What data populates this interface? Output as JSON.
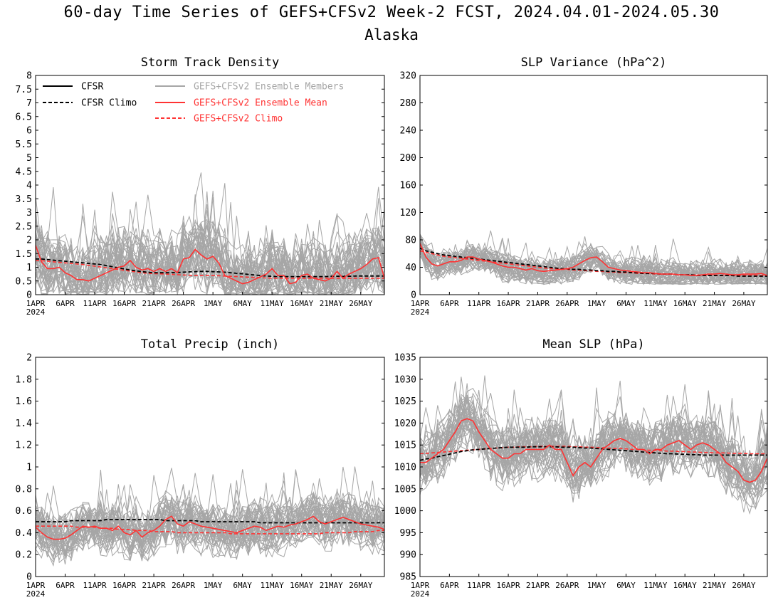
{
  "title": "60-day Time Series of GEFS+CFSv2 Week-2 FCST, 2024.04.01-2024.05.30",
  "subtitle": "Alaska",
  "colors": {
    "cfsr": "#000000",
    "ensemble_members": "#a6a6a6",
    "ensemble_mean": "#ff3333",
    "gefs_climo": "#ff3333"
  },
  "legend": {
    "cfsr": "CFSR",
    "cfsr_climo": "CFSR Climo",
    "members": "GEFS+CFSv2 Ensemble Members",
    "mean": "GEFS+CFSv2 Ensemble Mean",
    "gefs_climo": "GEFS+CFSv2 Climo"
  },
  "x_ticks": [
    "1APR",
    "6APR",
    "11APR",
    "16APR",
    "21APR",
    "26APR",
    "1MAY",
    "6MAY",
    "11MAY",
    "16MAY",
    "21MAY",
    "26MAY"
  ],
  "x_year": "2024",
  "chart_data": [
    {
      "type": "line",
      "title": "Storm Track Density",
      "x": "days 1APR-30MAY 2024",
      "ylim": [
        0,
        8
      ],
      "yticks": [
        "0",
        "0.5",
        "1",
        "1.5",
        "2",
        "2.5",
        "3",
        "3.5",
        "4",
        "4.5",
        "5",
        "5.5",
        "6",
        "6.5",
        "7",
        "7.5",
        "8"
      ],
      "ensemble_mean": [
        1.8,
        1.2,
        0.95,
        0.95,
        1.0,
        0.8,
        0.7,
        0.55,
        0.55,
        0.5,
        0.6,
        0.7,
        0.8,
        0.9,
        1.0,
        1.05,
        1.25,
        1.0,
        0.9,
        0.95,
        0.85,
        0.95,
        0.85,
        0.95,
        0.8,
        1.3,
        1.35,
        1.65,
        1.45,
        1.3,
        1.4,
        1.15,
        0.7,
        0.6,
        0.5,
        0.4,
        0.45,
        0.55,
        0.65,
        0.75,
        0.95,
        0.7,
        0.7,
        0.4,
        0.45,
        0.7,
        0.75,
        0.6,
        0.55,
        0.5,
        0.6,
        0.85,
        0.6,
        0.75,
        0.85,
        0.95,
        1.1,
        1.3,
        1.35,
        0.6
      ],
      "cfsr_climo": [
        1.3,
        1.3,
        1.28,
        1.26,
        1.24,
        1.22,
        1.2,
        1.18,
        1.16,
        1.14,
        1.12,
        1.1,
        1.06,
        1.02,
        0.98,
        0.94,
        0.9,
        0.87,
        0.84,
        0.82,
        0.8,
        0.8,
        0.8,
        0.8,
        0.81,
        0.82,
        0.83,
        0.84,
        0.85,
        0.85,
        0.84,
        0.83,
        0.82,
        0.8,
        0.78,
        0.76,
        0.74,
        0.72,
        0.7,
        0.68,
        0.67,
        0.66,
        0.66,
        0.66,
        0.66,
        0.66,
        0.66,
        0.66,
        0.66,
        0.66,
        0.67,
        0.67,
        0.67,
        0.67,
        0.68,
        0.68,
        0.68,
        0.68,
        0.68,
        0.68
      ],
      "gefs_climo": [
        1.25,
        1.24,
        1.22,
        1.2,
        1.18,
        1.16,
        1.14,
        1.12,
        1.1,
        1.07,
        1.04,
        1.01,
        0.98,
        0.95,
        0.92,
        0.89,
        0.86,
        0.83,
        0.8,
        0.78,
        0.77,
        0.76,
        0.75,
        0.74,
        0.73,
        0.72,
        0.71,
        0.7,
        0.7,
        0.7,
        0.7,
        0.69,
        0.68,
        0.67,
        0.66,
        0.65,
        0.64,
        0.63,
        0.62,
        0.61,
        0.6,
        0.6,
        0.6,
        0.6,
        0.6,
        0.6,
        0.6,
        0.6,
        0.6,
        0.6,
        0.6,
        0.6,
        0.6,
        0.6,
        0.6,
        0.6,
        0.6,
        0.6,
        0.6,
        0.6
      ],
      "members": {
        "count": 40,
        "center": "ensemble_mean",
        "spread": 1.4,
        "min": 0
      }
    },
    {
      "type": "line",
      "title": "SLP Variance (hPa^2)",
      "x": "days 1APR-30MAY 2024",
      "ylim": [
        0,
        320
      ],
      "yticks": [
        "0",
        "40",
        "80",
        "120",
        "160",
        "200",
        "240",
        "280",
        "320"
      ],
      "ensemble_mean": [
        75,
        55,
        45,
        42,
        45,
        48,
        48,
        50,
        55,
        55,
        52,
        50,
        48,
        45,
        42,
        40,
        40,
        38,
        36,
        38,
        35,
        34,
        35,
        36,
        37,
        38,
        40,
        45,
        50,
        54,
        55,
        48,
        40,
        38,
        36,
        35,
        34,
        33,
        32,
        32,
        31,
        30,
        30,
        30,
        29,
        29,
        28,
        28,
        29,
        30,
        30,
        31,
        30,
        29,
        29,
        30,
        30,
        30,
        31,
        28
      ],
      "cfsr_climo": [
        68,
        64,
        62,
        60,
        58,
        57,
        56,
        55,
        54,
        53,
        52,
        51,
        50,
        49,
        48,
        47,
        46,
        45,
        44,
        43,
        42,
        41,
        40,
        39,
        38,
        38,
        37,
        37,
        36,
        36,
        35,
        35,
        34,
        34,
        33,
        33,
        32,
        32,
        31,
        31,
        31,
        30,
        30,
        30,
        29,
        29,
        29,
        28,
        28,
        28,
        28,
        28,
        28,
        28,
        27,
        27,
        27,
        27,
        27,
        27
      ],
      "gefs_climo": [
        64,
        62,
        60,
        58,
        56,
        55,
        54,
        53,
        52,
        51,
        50,
        49,
        48,
        47,
        46,
        45,
        44,
        43,
        42,
        41,
        40,
        39,
        38,
        38,
        37,
        37,
        36,
        36,
        35,
        35,
        34,
        34,
        33,
        33,
        32,
        32,
        32,
        31,
        31,
        31,
        30,
        30,
        30,
        30,
        29,
        29,
        29,
        29,
        28,
        28,
        28,
        28,
        28,
        28,
        28,
        28,
        28,
        28,
        28,
        28
      ],
      "members": {
        "count": 40,
        "center": "ensemble_mean",
        "spread": 22,
        "min": 15
      }
    },
    {
      "type": "line",
      "title": "Total Precip (inch)",
      "x": "days 1APR-30MAY 2024",
      "ylim": [
        0,
        2
      ],
      "yticks": [
        "0",
        "0.2",
        "0.4",
        "0.6",
        "0.8",
        "1",
        "1.2",
        "1.4",
        "1.6",
        "1.8",
        "2"
      ],
      "ensemble_mean": [
        0.45,
        0.4,
        0.36,
        0.34,
        0.34,
        0.35,
        0.38,
        0.42,
        0.46,
        0.45,
        0.46,
        0.44,
        0.44,
        0.42,
        0.46,
        0.4,
        0.38,
        0.42,
        0.36,
        0.4,
        0.42,
        0.46,
        0.52,
        0.55,
        0.48,
        0.46,
        0.5,
        0.48,
        0.46,
        0.45,
        0.44,
        0.43,
        0.42,
        0.41,
        0.4,
        0.42,
        0.44,
        0.46,
        0.45,
        0.42,
        0.44,
        0.46,
        0.45,
        0.47,
        0.48,
        0.5,
        0.52,
        0.55,
        0.5,
        0.48,
        0.5,
        0.52,
        0.54,
        0.52,
        0.5,
        0.48,
        0.47,
        0.46,
        0.45,
        0.43
      ],
      "cfsr_climo": [
        0.5,
        0.5,
        0.5,
        0.5,
        0.5,
        0.5,
        0.51,
        0.51,
        0.51,
        0.51,
        0.51,
        0.51,
        0.52,
        0.52,
        0.52,
        0.52,
        0.52,
        0.52,
        0.52,
        0.52,
        0.52,
        0.52,
        0.51,
        0.51,
        0.51,
        0.51,
        0.51,
        0.51,
        0.5,
        0.5,
        0.5,
        0.5,
        0.5,
        0.5,
        0.5,
        0.5,
        0.5,
        0.5,
        0.49,
        0.49,
        0.49,
        0.49,
        0.49,
        0.49,
        0.49,
        0.49,
        0.49,
        0.49,
        0.49,
        0.49,
        0.49,
        0.49,
        0.49,
        0.49,
        0.49,
        0.49,
        0.49,
        0.49,
        0.49,
        0.49
      ],
      "gefs_climo": [
        0.46,
        0.46,
        0.46,
        0.46,
        0.46,
        0.46,
        0.46,
        0.45,
        0.45,
        0.45,
        0.45,
        0.44,
        0.44,
        0.44,
        0.43,
        0.43,
        0.43,
        0.42,
        0.42,
        0.42,
        0.41,
        0.41,
        0.41,
        0.41,
        0.4,
        0.4,
        0.4,
        0.4,
        0.4,
        0.4,
        0.4,
        0.4,
        0.4,
        0.39,
        0.39,
        0.39,
        0.39,
        0.39,
        0.39,
        0.39,
        0.39,
        0.39,
        0.39,
        0.39,
        0.39,
        0.39,
        0.39,
        0.39,
        0.39,
        0.4,
        0.4,
        0.4,
        0.4,
        0.4,
        0.41,
        0.41,
        0.41,
        0.41,
        0.42,
        0.42
      ],
      "members": {
        "count": 40,
        "center": "ensemble_mean",
        "spread": 0.25,
        "min": 0.02
      }
    },
    {
      "type": "line",
      "title": "Mean SLP (hPa)",
      "x": "days 1APR-30MAY 2024",
      "ylim": [
        985,
        1035
      ],
      "yticks": [
        "985",
        "990",
        "995",
        "1000",
        "1005",
        "1010",
        "1015",
        "1020",
        "1025",
        "1030",
        "1035"
      ],
      "ensemble_mean": [
        1011,
        1011,
        1012,
        1013,
        1014,
        1016,
        1018,
        1020.5,
        1021,
        1020.5,
        1018,
        1016,
        1014,
        1013,
        1012,
        1012,
        1013,
        1013,
        1014,
        1014,
        1014,
        1014,
        1015,
        1014,
        1014,
        1011,
        1008,
        1010,
        1011,
        1010,
        1012,
        1014,
        1015,
        1016,
        1016.5,
        1016,
        1015,
        1014,
        1014,
        1013,
        1014,
        1014,
        1015,
        1015.5,
        1016,
        1015,
        1014,
        1015,
        1015.5,
        1015,
        1014,
        1013,
        1011,
        1010,
        1009,
        1007,
        1006.5,
        1007,
        1009,
        1012
      ],
      "cfsr_climo": [
        1011.5,
        1011.8,
        1012,
        1012.3,
        1012.6,
        1012.9,
        1013.2,
        1013.5,
        1013.7,
        1013.9,
        1014,
        1014.1,
        1014.2,
        1014.3,
        1014.4,
        1014.5,
        1014.5,
        1014.5,
        1014.5,
        1014.6,
        1014.6,
        1014.6,
        1014.6,
        1014.6,
        1014.5,
        1014.5,
        1014.5,
        1014.4,
        1014.3,
        1014.3,
        1014.2,
        1014.1,
        1014,
        1013.9,
        1013.8,
        1013.7,
        1013.6,
        1013.5,
        1013.4,
        1013.3,
        1013.2,
        1013.1,
        1013,
        1013,
        1012.9,
        1012.9,
        1012.8,
        1012.8,
        1012.7,
        1012.7,
        1012.7,
        1012.7,
        1012.7,
        1012.7,
        1012.7,
        1012.7,
        1012.7,
        1012.7,
        1012.7,
        1012.7
      ],
      "gefs_climo": [
        1013,
        1013.1,
        1013.2,
        1013.3,
        1013.4,
        1013.5,
        1013.6,
        1013.7,
        1013.8,
        1013.9,
        1014,
        1014.1,
        1014.2,
        1014.3,
        1014.4,
        1014.5,
        1014.5,
        1014.6,
        1014.6,
        1014.6,
        1014.7,
        1014.7,
        1014.7,
        1014.7,
        1014.7,
        1014.7,
        1014.6,
        1014.6,
        1014.5,
        1014.5,
        1014.4,
        1014.4,
        1014.3,
        1014.2,
        1014.2,
        1014.1,
        1014,
        1014,
        1013.9,
        1013.8,
        1013.8,
        1013.7,
        1013.6,
        1013.6,
        1013.5,
        1013.5,
        1013.4,
        1013.4,
        1013.3,
        1013.3,
        1013.2,
        1013.2,
        1013.2,
        1013.1,
        1013.1,
        1013.1,
        1013,
        1013,
        1013,
        1013
      ],
      "members": {
        "count": 40,
        "center": "ensemble_mean",
        "spread": 7,
        "min": 985
      }
    }
  ]
}
